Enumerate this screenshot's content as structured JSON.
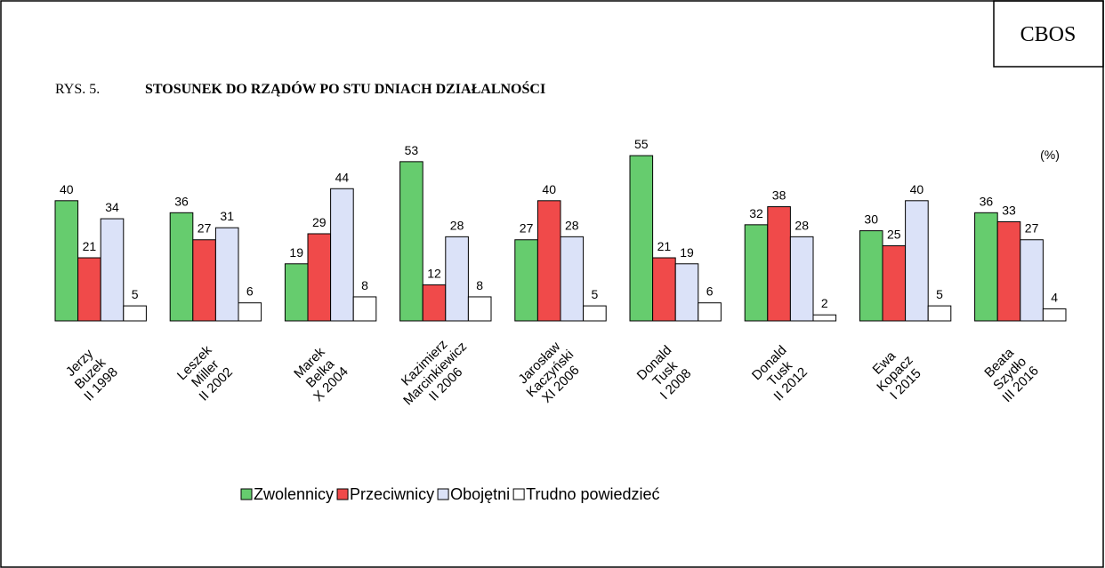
{
  "chart_data": {
    "type": "bar",
    "badge": "CBOS",
    "figure_label": "RYS. 5.",
    "title": "STOSUNEK DO RZĄDÓW PO STU DNIACH DZIAŁALNOŚCI",
    "unit": "(%)",
    "categories": [
      [
        "Jerzy",
        "Buzek",
        "II 1998"
      ],
      [
        "Leszek",
        "Miller",
        "II 2002"
      ],
      [
        "Marek",
        "Belka",
        "X 2004"
      ],
      [
        "Kazimierz",
        "Marcinkiewicz",
        "II 2006"
      ],
      [
        "Jarosław",
        "Kaczyński",
        "XI 2006"
      ],
      [
        "Donald",
        "Tusk",
        "I 2008"
      ],
      [
        "Donald",
        "Tusk",
        "II 2012"
      ],
      [
        "Ewa",
        "Kopacz",
        "I 2015"
      ],
      [
        "Beata",
        "Szydło",
        "III 2016"
      ]
    ],
    "series": [
      {
        "name": "Zwolennicy",
        "color": "#66cc6e",
        "values": [
          40,
          36,
          19,
          53,
          27,
          55,
          32,
          30,
          36
        ]
      },
      {
        "name": "Przeciwnicy",
        "color": "#f04a4a",
        "values": [
          21,
          27,
          29,
          12,
          40,
          21,
          38,
          25,
          33
        ]
      },
      {
        "name": "Obojętni",
        "color": "#dbe2f8",
        "values": [
          34,
          31,
          44,
          28,
          28,
          19,
          28,
          40,
          27
        ]
      },
      {
        "name": "Trudno powiedzieć",
        "color": "#ffffff",
        "values": [
          5,
          6,
          8,
          8,
          5,
          6,
          2,
          5,
          4
        ]
      }
    ]
  }
}
